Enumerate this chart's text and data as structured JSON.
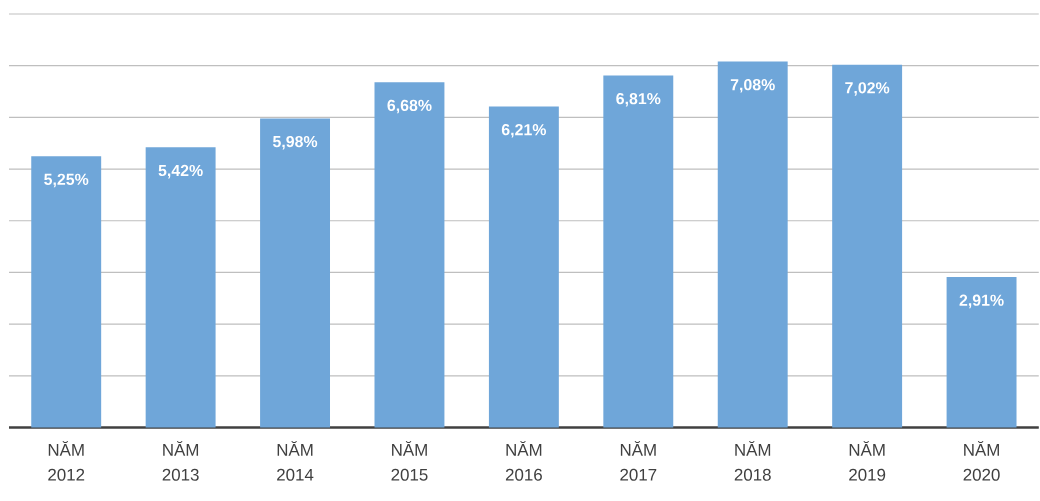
{
  "chart_data": {
    "type": "bar",
    "categories": [
      "NĂM 2012",
      "NĂM 2013",
      "NĂM 2014",
      "NĂM 2015",
      "NĂM 2016",
      "NĂM 2017",
      "NĂM 2018",
      "NĂM 2019",
      "NĂM 2020"
    ],
    "values": [
      5.25,
      5.42,
      5.98,
      6.68,
      6.21,
      6.81,
      7.08,
      7.02,
      2.91
    ],
    "value_labels": [
      "5,25%",
      "5,42%",
      "5,98%",
      "6,68%",
      "6,21%",
      "6,81%",
      "7,08%",
      "7,02%",
      "2,91%"
    ],
    "color": "#6fa6d9",
    "ylim": [
      0,
      8
    ],
    "yticks": [
      {
        "value": 0,
        "label": null
      },
      {
        "value": 1,
        "label": null
      },
      {
        "value": 2,
        "label": null
      },
      {
        "value": 3,
        "label": null
      },
      {
        "value": 4,
        "label": null
      },
      {
        "value": 5,
        "label": null
      },
      {
        "value": 6,
        "label": null
      },
      {
        "value": 7,
        "label": null
      },
      {
        "value": 8,
        "label": null
      }
    ],
    "grid": "y",
    "tick_labels": "x"
  }
}
